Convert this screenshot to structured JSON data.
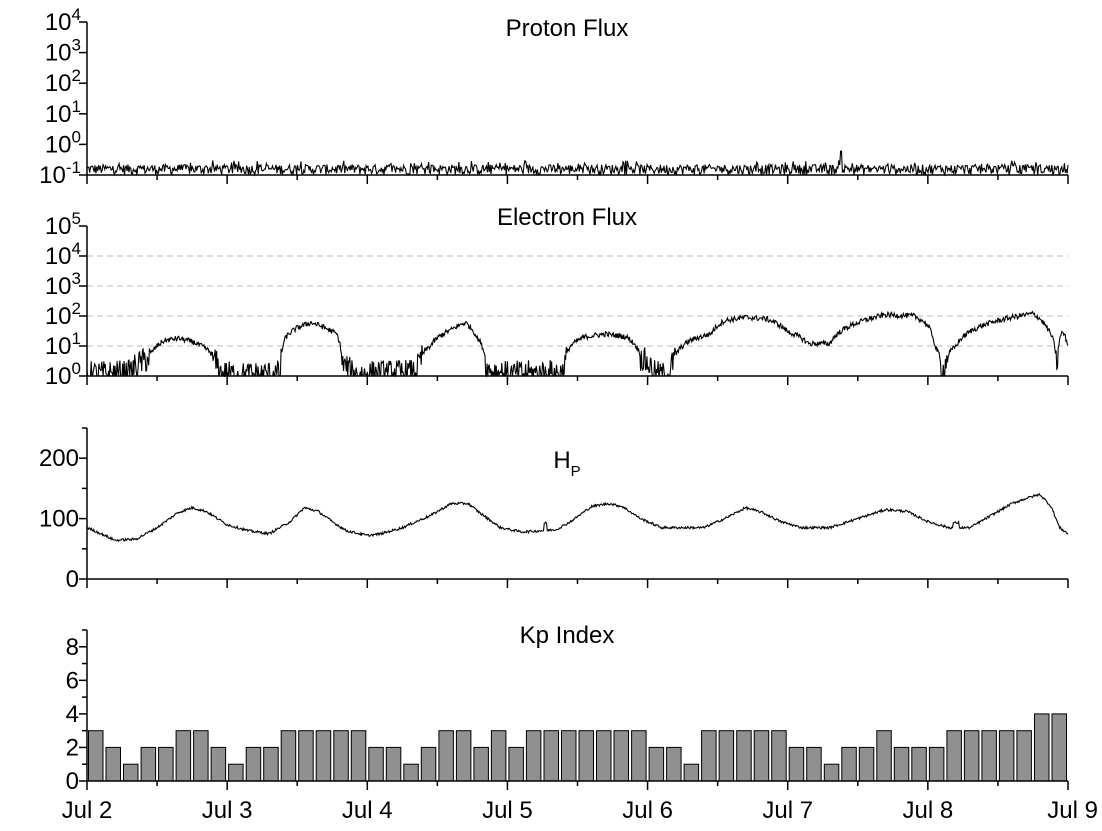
{
  "chart_data": [
    {
      "type": "line",
      "title": "Proton Flux",
      "yscale": "log",
      "ylim_exponents": [
        -1,
        4
      ],
      "ytick_exponents": [
        -1,
        0,
        1,
        2,
        3,
        4
      ],
      "xlim": [
        "Jul 2",
        "Jul 9"
      ],
      "grid": false,
      "description_values": {
        "baseline": 0.1,
        "typical_peak": 0.3,
        "max_peak": 0.6
      }
    },
    {
      "type": "line",
      "title": "Electron Flux",
      "yscale": "log",
      "ylim_exponents": [
        0,
        5
      ],
      "ytick_exponents": [
        0,
        1,
        2,
        3,
        4,
        5
      ],
      "grid_exponents": [
        1,
        2,
        3,
        4
      ],
      "xlim": [
        "Jul 2",
        "Jul 9"
      ],
      "grid": true,
      "series": [
        {
          "x": [
            2.0,
            2.3,
            2.45,
            2.55,
            2.65,
            2.75,
            2.85,
            2.95,
            3.1,
            3.3,
            3.38,
            3.42,
            3.5,
            3.6,
            3.7,
            3.78,
            3.82,
            3.9,
            4.1,
            4.35,
            4.45,
            4.6,
            4.7,
            4.78,
            4.85,
            5.0,
            5.2,
            5.4,
            5.45,
            5.55,
            5.7,
            5.85,
            5.95,
            6.05,
            6.15,
            6.2,
            6.3,
            6.45,
            6.55,
            6.7,
            6.85,
            7.0,
            7.15,
            7.3,
            7.5,
            7.7,
            7.9,
            7.98,
            8.05,
            8.1,
            8.2,
            8.35,
            8.55,
            8.75,
            8.85,
            8.92,
            8.96,
            9.0
          ],
          "y": [
            1.4,
            1.5,
            5,
            15,
            18,
            14,
            8,
            1.5,
            1.3,
            1.4,
            1.5,
            20,
            40,
            60,
            40,
            25,
            3,
            1.4,
            1.5,
            1.6,
            10,
            35,
            60,
            20,
            2,
            1.4,
            1.5,
            1.6,
            10,
            20,
            25,
            20,
            5,
            1.5,
            1.2,
            5,
            15,
            25,
            70,
            90,
            80,
            30,
            12,
            12,
            60,
            110,
            100,
            60,
            10,
            1,
            10,
            40,
            80,
            120,
            40,
            1,
            30,
            10
          ]
        }
      ]
    },
    {
      "type": "line",
      "title": "H",
      "title_sub": "P",
      "ylim": [
        0,
        250
      ],
      "yticks": [
        0,
        100,
        200
      ],
      "xlim": [
        "Jul 2",
        "Jul 9"
      ],
      "grid": false,
      "series": [
        {
          "x": [
            2.0,
            2.1,
            2.2,
            2.35,
            2.5,
            2.65,
            2.75,
            2.85,
            3.0,
            3.15,
            3.3,
            3.45,
            3.55,
            3.65,
            3.75,
            3.85,
            4.0,
            4.1,
            4.25,
            4.45,
            4.6,
            4.72,
            4.8,
            4.95,
            5.1,
            5.25,
            5.35,
            5.45,
            5.6,
            5.72,
            5.82,
            5.95,
            6.1,
            6.25,
            6.4,
            6.55,
            6.7,
            6.82,
            6.95,
            7.1,
            7.3,
            7.5,
            7.7,
            7.85,
            8.0,
            8.15,
            8.3,
            8.45,
            8.6,
            8.72,
            8.8,
            8.88,
            8.94,
            9.0
          ],
          "y": [
            85,
            75,
            64,
            66,
            85,
            110,
            118,
            112,
            90,
            80,
            75,
            95,
            118,
            112,
            95,
            80,
            72,
            75,
            85,
            105,
            125,
            125,
            110,
            85,
            78,
            80,
            82,
            95,
            120,
            125,
            120,
            100,
            85,
            85,
            85,
            100,
            118,
            110,
            95,
            85,
            85,
            100,
            115,
            112,
            95,
            85,
            85,
            105,
            125,
            135,
            140,
            120,
            85,
            75
          ]
        }
      ]
    },
    {
      "type": "bar",
      "title": "Kp Index",
      "ylim": [
        0,
        9
      ],
      "yticks": [
        0,
        2,
        4,
        6,
        8
      ],
      "bin_width_days": 0.125,
      "x_start": "Jul 2",
      "grid": false,
      "values": [
        3,
        2,
        1,
        2,
        2,
        3,
        3,
        2,
        1,
        2,
        2,
        3,
        3,
        3,
        3,
        3,
        2,
        2,
        1,
        2,
        3,
        3,
        2,
        3,
        2,
        3,
        3,
        3,
        3,
        3,
        3,
        3,
        2,
        2,
        1,
        3,
        3,
        3,
        3,
        3,
        2,
        2,
        1,
        2,
        2,
        3,
        2,
        2,
        2,
        3,
        3,
        3,
        3,
        3,
        4,
        4
      ]
    }
  ],
  "x_axis": {
    "tick_labels": [
      "Jul 2",
      "Jul 3",
      "Jul 4",
      "Jul 5",
      "Jul 6",
      "Jul 7",
      "Jul 8",
      "Jul 9"
    ]
  }
}
